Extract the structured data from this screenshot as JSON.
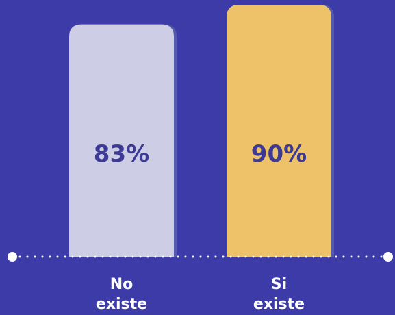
{
  "chart_data": {
    "type": "bar",
    "categories": [
      "No existe",
      "Si existe"
    ],
    "category_lines": [
      [
        "No",
        "existe"
      ],
      [
        "Si",
        "existe"
      ]
    ],
    "values": [
      83,
      90
    ],
    "data_labels": [
      "83%",
      "90%"
    ],
    "ylim": [
      0,
      90
    ],
    "title": "",
    "xlabel": "",
    "ylabel": "",
    "grid": false,
    "legend": "none"
  },
  "colors": {
    "background": "#3d3ba8",
    "bar_fills": [
      "#cdcee6",
      "#edc268"
    ],
    "bar_shadow": "#535aa8",
    "value_text": "#3d3a95",
    "axis": "#ffffff"
  }
}
